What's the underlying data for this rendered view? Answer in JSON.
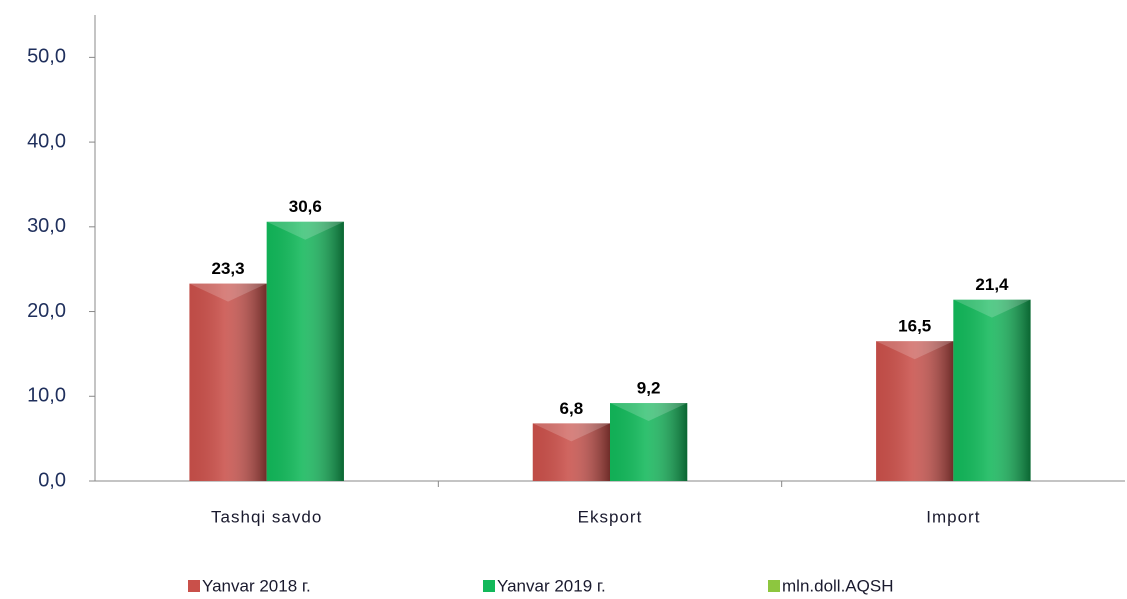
{
  "chart_data": {
    "type": "bar",
    "categories": [
      "Tashqi savdo",
      "Eksport",
      "Import"
    ],
    "series": [
      {
        "name": "Yanvar 2018 г.",
        "color": "#c9504a",
        "values": [
          23.3,
          6.8,
          16.5
        ],
        "value_labels": [
          "23,3",
          "6,8",
          "16,5"
        ]
      },
      {
        "name": "Yanvar 2019 г.",
        "color": "#12b85a",
        "values": [
          30.6,
          9.2,
          21.4
        ],
        "value_labels": [
          "30,6",
          "9,2",
          "21,4"
        ]
      },
      {
        "name": "mln.doll.AQSH",
        "color": "#8dc63f",
        "values": [
          null,
          null,
          null
        ]
      }
    ],
    "ylim": [
      0,
      55
    ],
    "yticks": [
      {
        "value": 0,
        "label": "0,0"
      },
      {
        "value": 10,
        "label": "10,0"
      },
      {
        "value": 20,
        "label": "20,0"
      },
      {
        "value": 30,
        "label": "30,0"
      },
      {
        "value": 40,
        "label": "40,0"
      },
      {
        "value": 50,
        "label": "50,0"
      }
    ],
    "grid": false
  }
}
